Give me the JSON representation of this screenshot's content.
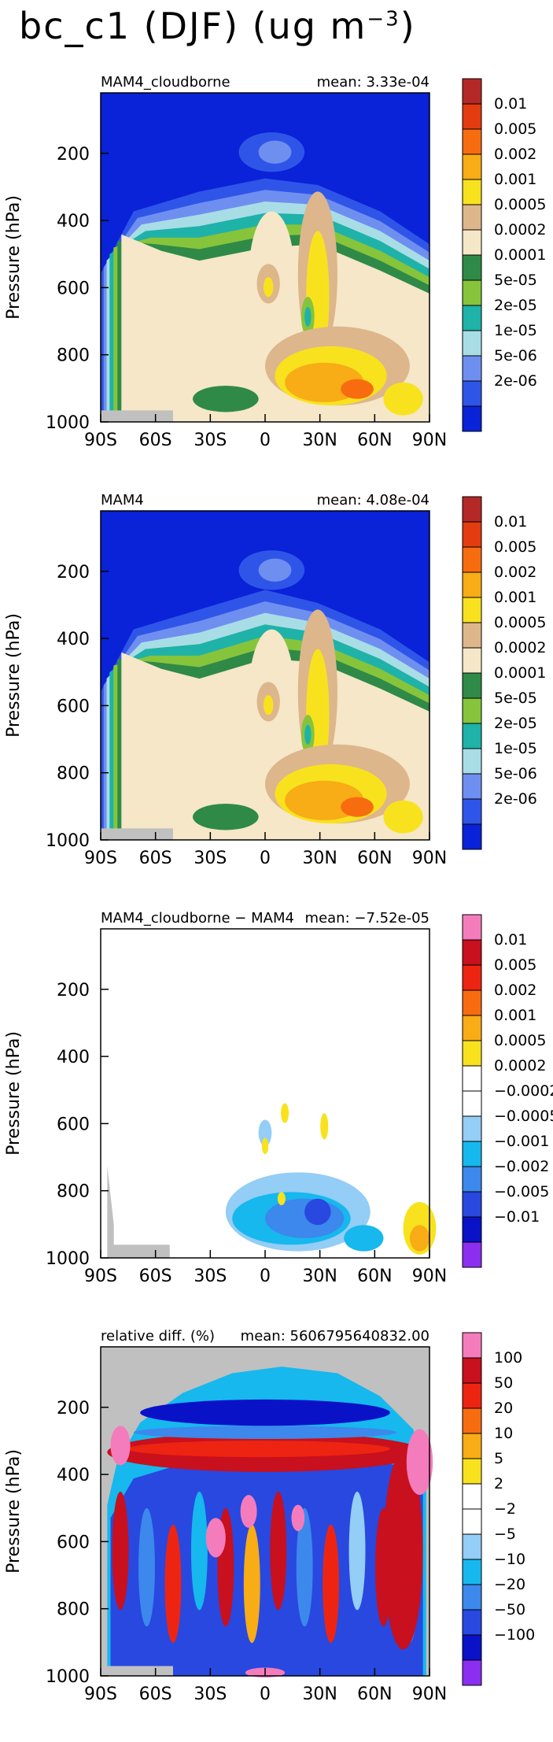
{
  "page": {
    "title_main": "bc_c1 (DJF) (ug m",
    "title_exp": "−3",
    "title_close": ")"
  },
  "colors": {
    "field": [
      "#0a22d8",
      "#2f55e8",
      "#6f8ff0",
      "#a8dde6",
      "#1fb2a8",
      "#86c43c",
      "#2f8a48",
      "#f5e7c7",
      "#ddb68c",
      "#f8e21e",
      "#f8ac16",
      "#f86c10",
      "#e23c10",
      "#b42828"
    ],
    "diff": [
      "#8c2ef0",
      "#0a12c8",
      "#2848e0",
      "#3c88ec",
      "#16b8ee",
      "#94cdf5",
      "#ffffff",
      "#ffffff",
      "#f8e21e",
      "#f8ac16",
      "#f86c10",
      "#ee2412",
      "#c8101e",
      "#f47cbc"
    ],
    "missing": "#c0c0c0",
    "axis": "#000000"
  },
  "chart_data": [
    {
      "type": "heatmap",
      "title": "MAM4_cloudborne",
      "mean_text": "mean: 3.33e-04",
      "ylabel": "Pressure (hPa)",
      "x_ticks": [
        "90S",
        "60S",
        "30S",
        "0",
        "30N",
        "60N",
        "90N"
      ],
      "y_ticks": [
        "200",
        "400",
        "600",
        "800",
        "1000"
      ],
      "xlim": [
        -90,
        90
      ],
      "ylim": [
        1000,
        20
      ],
      "colorbar_labels": [
        "0.01",
        "0.005",
        "0.002",
        "0.001",
        "0.0005",
        "0.0002",
        "0.0001",
        "5e-05",
        "2e-05",
        "1e-05",
        "5e-06",
        "2e-06"
      ],
      "grid": false
    },
    {
      "type": "heatmap",
      "title": "MAM4",
      "mean_text": "mean: 4.08e-04",
      "ylabel": "Pressure (hPa)",
      "x_ticks": [
        "90S",
        "60S",
        "30S",
        "0",
        "30N",
        "60N",
        "90N"
      ],
      "y_ticks": [
        "200",
        "400",
        "600",
        "800",
        "1000"
      ],
      "xlim": [
        -90,
        90
      ],
      "ylim": [
        1000,
        20
      ],
      "colorbar_labels": [
        "0.01",
        "0.005",
        "0.002",
        "0.001",
        "0.0005",
        "0.0002",
        "0.0001",
        "5e-05",
        "2e-05",
        "1e-05",
        "5e-06",
        "2e-06"
      ],
      "grid": false
    },
    {
      "type": "heatmap",
      "title": "MAM4_cloudborne − MAM4",
      "mean_text": "mean: −7.52e-05",
      "ylabel": "Pressure (hPa)",
      "x_ticks": [
        "90S",
        "60S",
        "30S",
        "0",
        "30N",
        "60N",
        "90N"
      ],
      "y_ticks": [
        "200",
        "400",
        "600",
        "800",
        "1000"
      ],
      "xlim": [
        -90,
        90
      ],
      "ylim": [
        1000,
        20
      ],
      "colorbar_labels": [
        "0.01",
        "0.005",
        "0.002",
        "0.001",
        "0.0005",
        "0.0002",
        "−0.0002",
        "−0.0005",
        "−0.001",
        "−0.002",
        "−0.005",
        "−0.01"
      ],
      "grid": false
    },
    {
      "type": "heatmap",
      "title": "relative diff. (%)",
      "mean_text": "mean: 5606795640832.00",
      "ylabel": "Pressure (hPa)",
      "x_ticks": [
        "90S",
        "60S",
        "30S",
        "0",
        "30N",
        "60N",
        "90N"
      ],
      "y_ticks": [
        "200",
        "400",
        "600",
        "800",
        "1000"
      ],
      "xlim": [
        -90,
        90
      ],
      "ylim": [
        1000,
        20
      ],
      "colorbar_labels": [
        "100",
        "50",
        "20",
        "10",
        "5",
        "2",
        "−2",
        "−5",
        "−10",
        "−20",
        "−50",
        "−100"
      ],
      "grid": false
    }
  ]
}
